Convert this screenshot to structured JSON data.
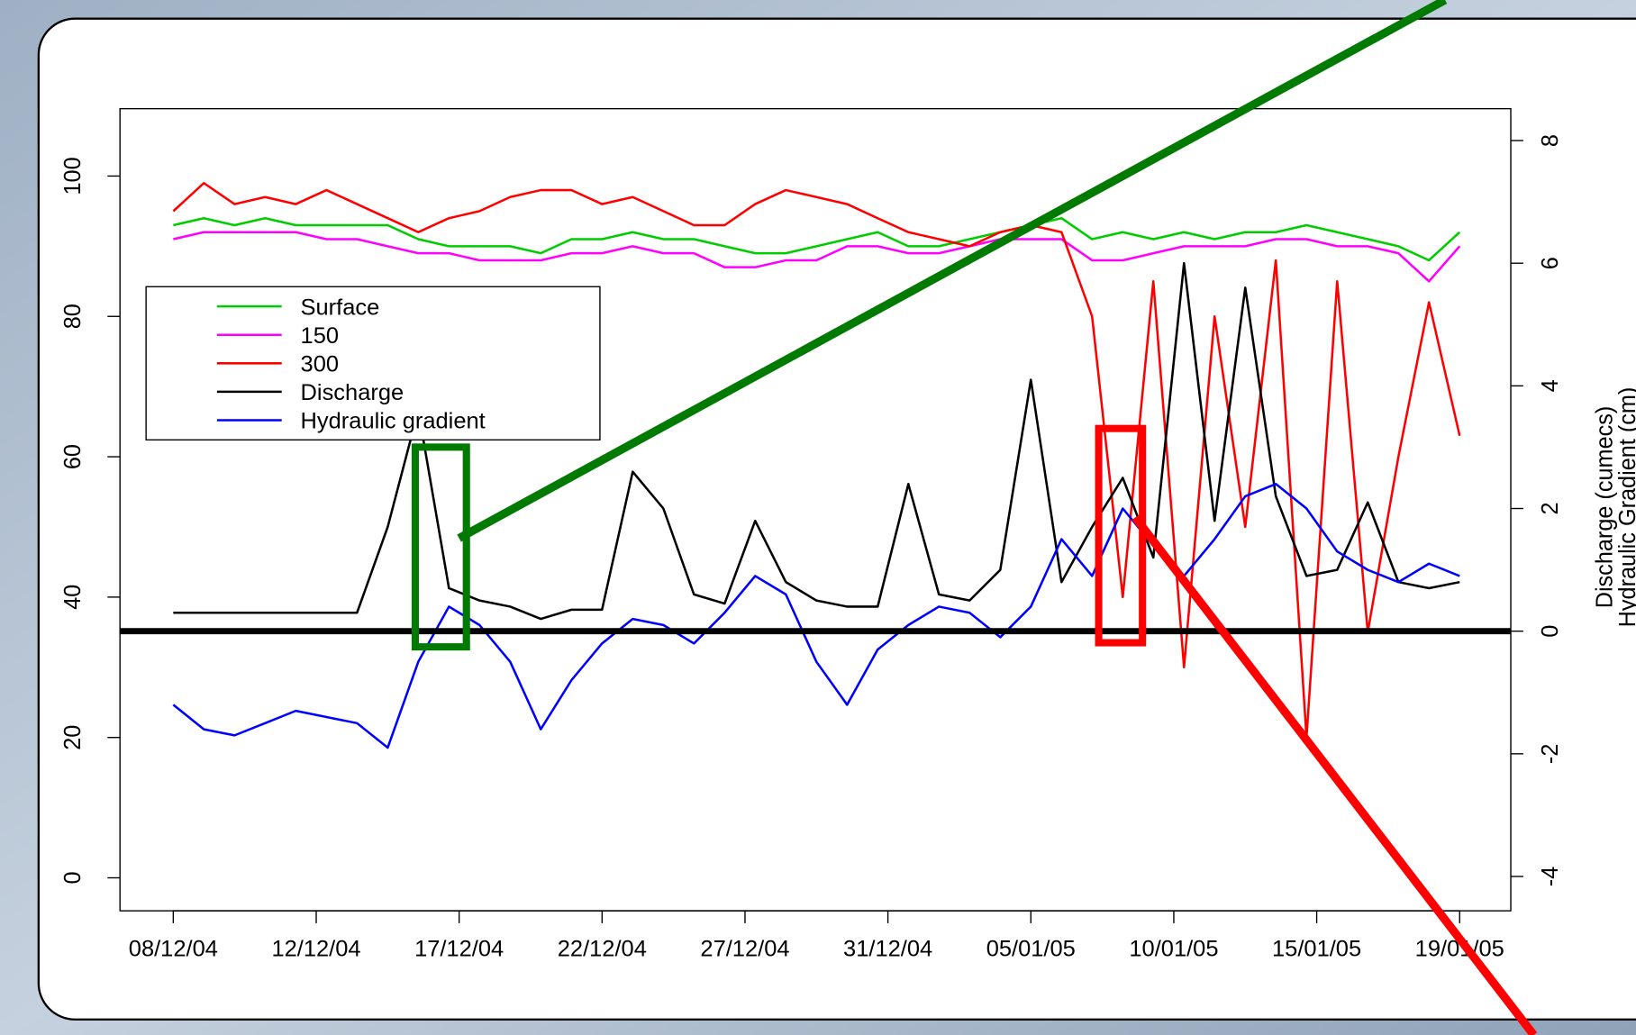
{
  "chart_data": {
    "type": "line",
    "x": [
      0,
      1,
      2,
      3,
      4,
      5,
      6,
      7,
      8,
      9,
      10,
      11,
      12,
      13,
      14,
      15,
      16,
      17,
      18,
      19,
      20,
      21,
      22,
      23,
      24,
      25,
      26,
      27,
      28,
      29,
      30,
      31,
      32,
      33,
      34,
      35,
      36,
      37,
      38,
      39,
      40,
      41,
      42
    ],
    "xlim": [
      -1.74,
      43.67
    ],
    "xticks": [
      {
        "value": 0,
        "label": "08/12/04"
      },
      {
        "value": 4.667,
        "label": "12/12/04"
      },
      {
        "value": 9.333,
        "label": "17/12/04"
      },
      {
        "value": 14,
        "label": "22/12/04"
      },
      {
        "value": 18.667,
        "label": "27/12/04"
      },
      {
        "value": 23.333,
        "label": "31/12/04"
      },
      {
        "value": 28,
        "label": "05/01/05"
      },
      {
        "value": 32.667,
        "label": "10/01/05"
      },
      {
        "value": 37.333,
        "label": "15/01/05"
      },
      {
        "value": 42,
        "label": "19/01/05"
      }
    ],
    "ylim": [
      -4.7,
      109.6
    ],
    "yticks": [
      0,
      20,
      40,
      60,
      80,
      100
    ],
    "y2lim": [
      -4.56,
      8.52
    ],
    "y2ticks": [
      -4,
      -2,
      0,
      2,
      4,
      6,
      8
    ],
    "y2_label": [
      "Discharge (cumecs)",
      "Hydraulic Gradient (cm)"
    ],
    "hline": {
      "axis": "y2",
      "value": 0,
      "color": "#000000"
    },
    "legend_position": "left",
    "series": [
      {
        "name": "Surface",
        "color": "#00cc00",
        "axis": "y",
        "values": [
          93,
          94,
          93,
          94,
          93,
          93,
          93,
          93,
          91,
          90,
          90,
          90,
          89,
          91,
          91,
          92,
          91,
          91,
          90,
          89,
          89,
          90,
          91,
          92,
          90,
          90,
          91,
          92,
          93,
          94,
          91,
          92,
          91,
          92,
          91,
          92,
          92,
          93,
          92,
          91,
          90,
          88,
          92
        ]
      },
      {
        "name": "150",
        "color": "#ff00ff",
        "axis": "y",
        "values": [
          91,
          92,
          92,
          92,
          92,
          91,
          91,
          90,
          89,
          89,
          88,
          88,
          88,
          89,
          89,
          90,
          89,
          89,
          87,
          87,
          88,
          88,
          90,
          90,
          89,
          89,
          90,
          91,
          91,
          91,
          88,
          88,
          89,
          90,
          90,
          90,
          91,
          91,
          90,
          90,
          89,
          85,
          90
        ]
      },
      {
        "name": "300",
        "color": "#ff0000",
        "axis": "y",
        "values": [
          95,
          99,
          96,
          97,
          96,
          98,
          96,
          94,
          92,
          94,
          95,
          97,
          98,
          98,
          96,
          97,
          95,
          93,
          93,
          96,
          98,
          97,
          96,
          94,
          92,
          91,
          90,
          92,
          93,
          92,
          80,
          40,
          85,
          30,
          80,
          50,
          88,
          20,
          85,
          35,
          60,
          82,
          63
        ]
      },
      {
        "name": "Discharge",
        "color": "#000000",
        "axis": "y2",
        "values": [
          0.3,
          0.3,
          0.3,
          0.3,
          0.3,
          0.3,
          0.3,
          1.7,
          3.6,
          0.7,
          0.5,
          0.4,
          0.2,
          0.35,
          0.35,
          2.6,
          2.0,
          0.6,
          0.45,
          1.8,
          0.8,
          0.5,
          0.4,
          0.4,
          2.4,
          0.6,
          0.5,
          1.0,
          4.1,
          0.8,
          1.7,
          2.5,
          1.2,
          6.0,
          1.8,
          5.6,
          2.2,
          0.9,
          1.0,
          2.1,
          0.8,
          0.7,
          0.8
        ]
      },
      {
        "name": "Hydraulic gradient",
        "color": "#0000ff",
        "axis": "y2",
        "values": [
          -1.2,
          -1.6,
          -1.7,
          -1.5,
          -1.3,
          -1.4,
          -1.5,
          -1.9,
          -0.5,
          0.4,
          0.1,
          -0.5,
          -1.6,
          -0.8,
          -0.2,
          0.2,
          0.1,
          -0.2,
          0.3,
          0.9,
          0.6,
          -0.5,
          -1.2,
          -0.3,
          0.1,
          0.4,
          0.3,
          -0.1,
          0.4,
          1.5,
          0.9,
          2.0,
          1.4,
          0.9,
          1.5,
          2.2,
          2.4,
          2.0,
          1.3,
          1.0,
          0.8,
          1.1,
          0.9
        ]
      }
    ]
  }
}
